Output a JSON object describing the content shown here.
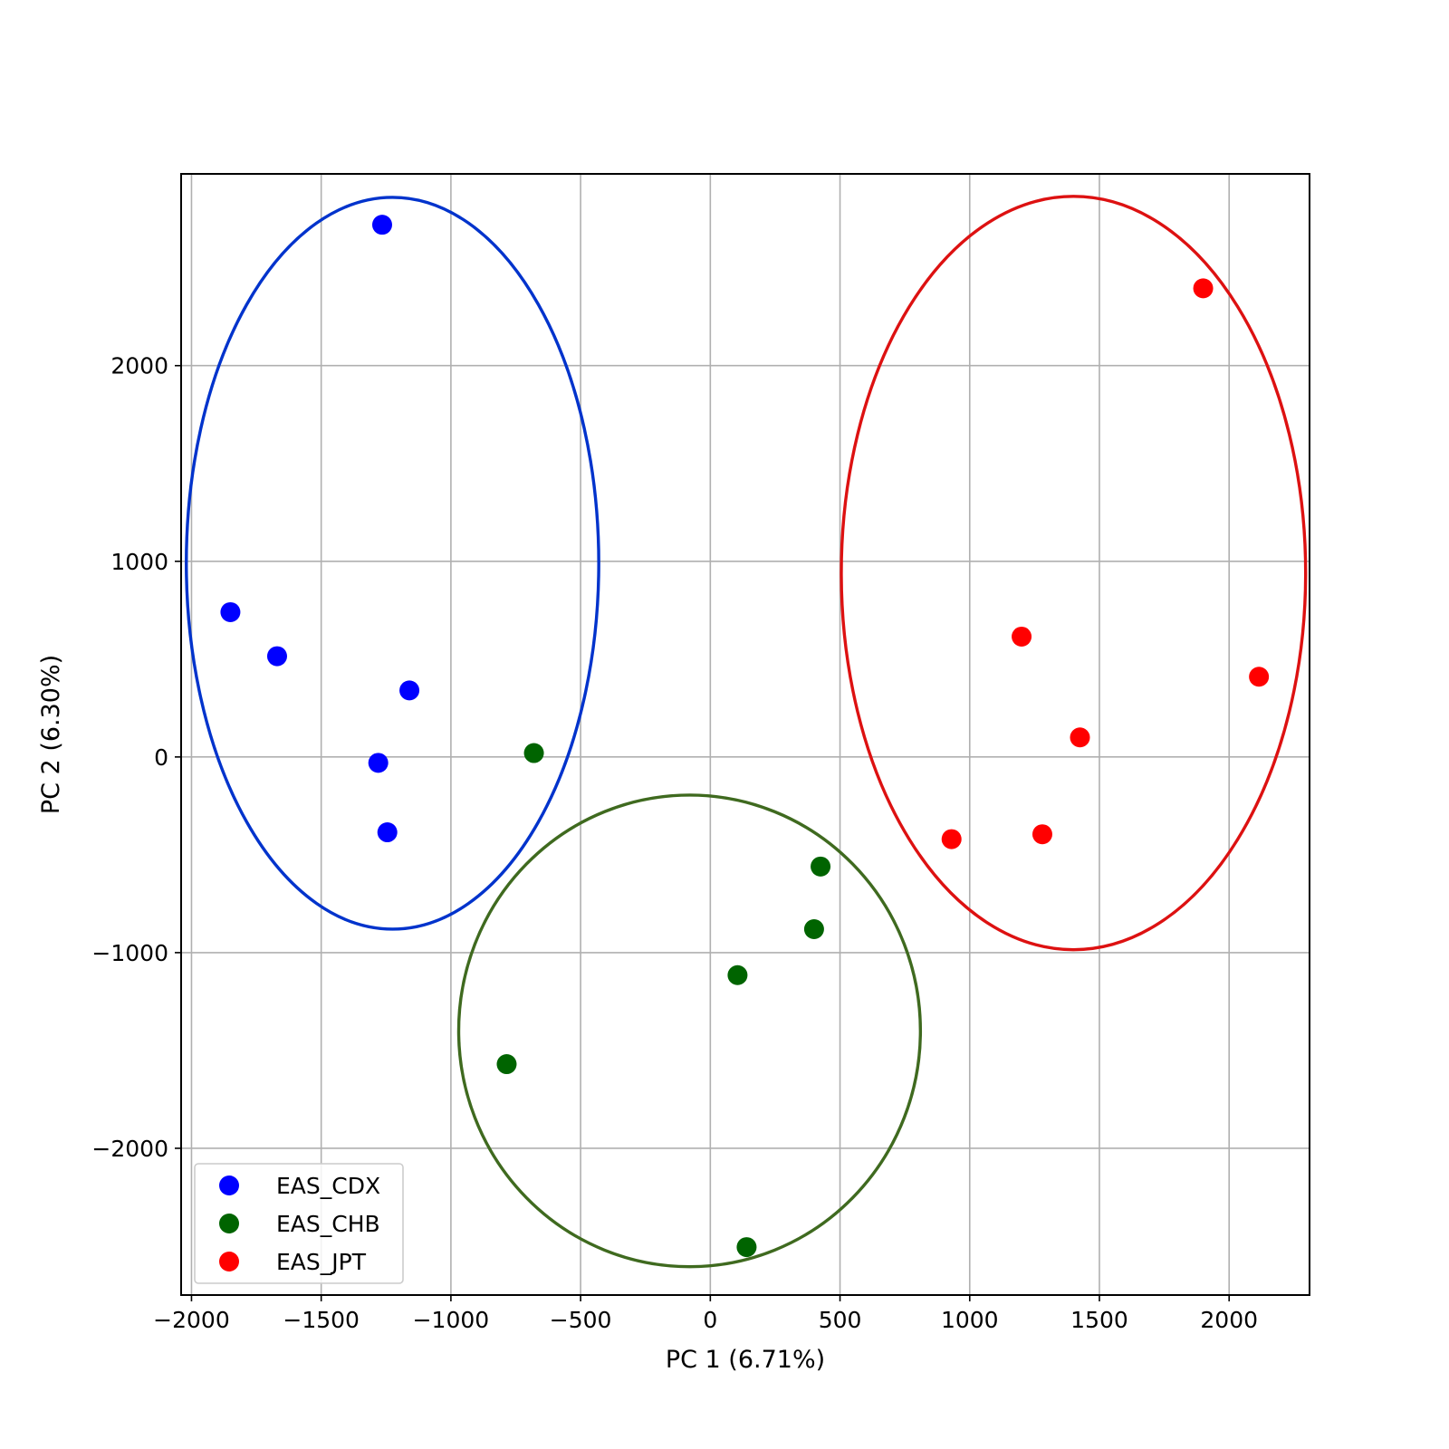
{
  "chart_data": {
    "type": "scatter",
    "title": "",
    "xlabel": "PC 1 (6.71%)",
    "ylabel": "PC 2 (6.30%)",
    "xlim": [
      -2040,
      2310
    ],
    "ylim": [
      -2750,
      2980
    ],
    "xticks": [
      -2000,
      -1500,
      -1000,
      -500,
      0,
      500,
      1000,
      1500,
      2000
    ],
    "xtick_labels": [
      "−2000",
      "−1500",
      "−1000",
      "−500",
      "0",
      "500",
      "1000",
      "1500",
      "2000"
    ],
    "yticks": [
      -2000,
      -1000,
      0,
      1000,
      2000
    ],
    "ytick_labels": [
      "−2000",
      "−1000",
      "0",
      "1000",
      "2000"
    ],
    "grid": true,
    "legend_position": "lower-left",
    "series": [
      {
        "name": "EAS_CDX",
        "color": "#0000ff",
        "points": [
          [
            -1265,
            2720
          ],
          [
            -1850,
            740
          ],
          [
            -1670,
            515
          ],
          [
            -1160,
            340
          ],
          [
            -1280,
            -30
          ],
          [
            -1245,
            -385
          ]
        ],
        "ellipse": {
          "center": [
            -1225,
            990
          ],
          "half_width": 795,
          "half_height": 1870,
          "color": "#0033cc"
        }
      },
      {
        "name": "EAS_CHB",
        "color": "#006400",
        "points": [
          [
            -680,
            20
          ],
          [
            425,
            -560
          ],
          [
            400,
            -880
          ],
          [
            105,
            -1115
          ],
          [
            -785,
            -1570
          ],
          [
            140,
            -2505
          ]
        ],
        "ellipse": {
          "center": [
            -80,
            -1400
          ],
          "half_width": 890,
          "half_height": 1205,
          "color": "#3f6a1f"
        }
      },
      {
        "name": "EAS_JPT",
        "color": "#ff0000",
        "points": [
          [
            1900,
            2395
          ],
          [
            1200,
            615
          ],
          [
            2115,
            410
          ],
          [
            1425,
            100
          ],
          [
            930,
            -420
          ],
          [
            1280,
            -395
          ]
        ],
        "ellipse": {
          "center": [
            1400,
            940
          ],
          "half_width": 895,
          "half_height": 1925,
          "color": "#dd1111"
        }
      }
    ]
  }
}
